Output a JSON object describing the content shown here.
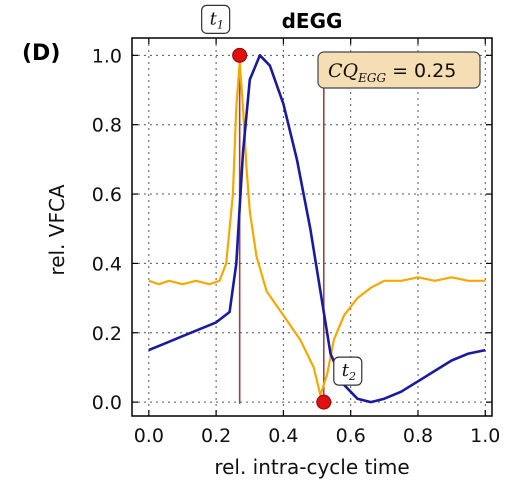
{
  "panel_label": "(D)",
  "chart_data": {
    "type": "line",
    "title": "dEGG",
    "xlabel": "rel. intra-cycle time",
    "ylabel": "rel. VFCA",
    "xlim": [
      -0.05,
      1.02
    ],
    "ylim": [
      -0.04,
      1.05
    ],
    "xticks": [
      "0.0",
      "0.2",
      "0.4",
      "0.6",
      "0.8",
      "1.0"
    ],
    "yticks": [
      "0.0",
      "0.2",
      "0.4",
      "0.6",
      "0.8",
      "1.0"
    ],
    "grid": true,
    "annotation_box": {
      "symbol": "CQ",
      "subscript": "EGG",
      "text": "= 0.25"
    },
    "markers": [
      {
        "label": "t",
        "subscript": "1",
        "x": 0.27,
        "y": 1.0
      },
      {
        "label": "t",
        "subscript": "2",
        "x": 0.52,
        "y": 0.0
      }
    ],
    "vlines": [
      0.27,
      0.52
    ],
    "colors": {
      "blue_series": "#1a1aa0",
      "orange_series": "#f5a800",
      "vline": "#a04040",
      "marker": "#e01010",
      "box_fill": "#f5deb3"
    },
    "series": [
      {
        "x": [
          0.0,
          0.05,
          0.1,
          0.15,
          0.2,
          0.24,
          0.26,
          0.28,
          0.3,
          0.33,
          0.36,
          0.4,
          0.44,
          0.48,
          0.51,
          0.54,
          0.58,
          0.62,
          0.66,
          0.7,
          0.75,
          0.8,
          0.85,
          0.9,
          0.95,
          1.0
        ],
        "y": [
          0.15,
          0.17,
          0.19,
          0.21,
          0.23,
          0.26,
          0.4,
          0.72,
          0.93,
          1.0,
          0.97,
          0.86,
          0.7,
          0.5,
          0.32,
          0.14,
          0.05,
          0.01,
          0.0,
          0.01,
          0.03,
          0.06,
          0.09,
          0.12,
          0.14,
          0.15
        ]
      },
      {
        "x": [
          0.0,
          0.03,
          0.06,
          0.1,
          0.14,
          0.18,
          0.21,
          0.23,
          0.25,
          0.26,
          0.27,
          0.28,
          0.29,
          0.3,
          0.32,
          0.35,
          0.4,
          0.45,
          0.49,
          0.51,
          0.53,
          0.55,
          0.58,
          0.62,
          0.66,
          0.7,
          0.75,
          0.8,
          0.85,
          0.9,
          0.95,
          1.0
        ],
        "y": [
          0.35,
          0.34,
          0.35,
          0.34,
          0.35,
          0.34,
          0.35,
          0.4,
          0.6,
          0.85,
          0.98,
          0.85,
          0.68,
          0.55,
          0.42,
          0.32,
          0.25,
          0.18,
          0.1,
          0.02,
          0.08,
          0.18,
          0.25,
          0.3,
          0.33,
          0.35,
          0.35,
          0.36,
          0.35,
          0.36,
          0.35,
          0.35
        ]
      }
    ]
  }
}
